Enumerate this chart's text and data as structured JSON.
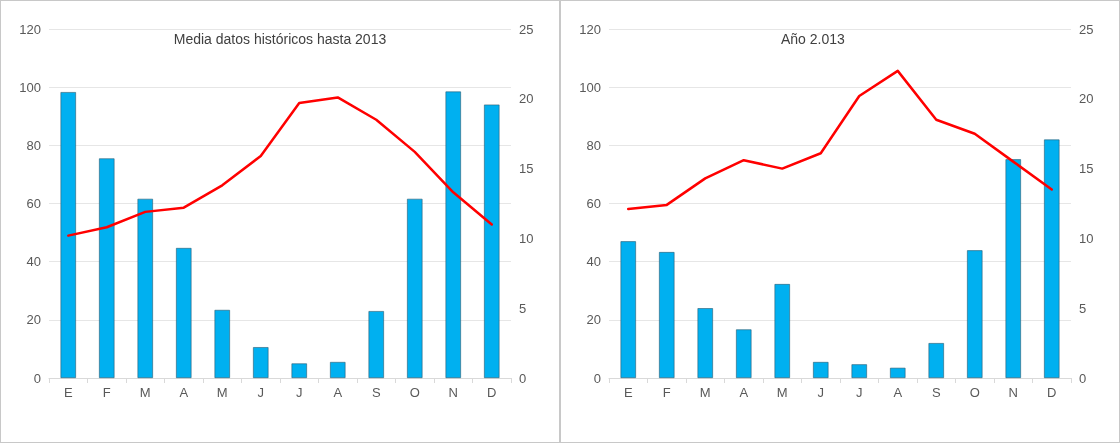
{
  "chart_data": [
    {
      "type": "bar",
      "title": "Media datos históricos hasta 2013",
      "categories": [
        "E",
        "F",
        "M",
        "A",
        "M",
        "J",
        "J",
        "A",
        "S",
        "O",
        "N",
        "D"
      ],
      "series": [
        {
          "color": "#00b0f0",
          "values": [
            98.3,
            75.5,
            61.6,
            44.7,
            23.4,
            10.6,
            5.0,
            5.5,
            23,
            61.6,
            98.5,
            94
          ]
        },
        {
          "type": "line",
          "axis": "y2",
          "color": "#ff0000",
          "values": [
            10.2,
            10.8,
            11.9,
            12.2,
            13.8,
            15.9,
            19.7,
            20.1,
            18.5,
            16.2,
            13.3,
            11.0
          ]
        }
      ],
      "ylim": [
        0,
        120
      ],
      "yticks": [
        0,
        20,
        40,
        60,
        80,
        100,
        120
      ],
      "y2lim": [
        0,
        25
      ],
      "y2ticks": [
        0,
        5,
        10,
        15,
        20,
        25
      ],
      "grid": "y",
      "marker": "none",
      "line_style": "solid"
    },
    {
      "type": "bar",
      "title": "Año 2.013",
      "categories": [
        "E",
        "F",
        "M",
        "A",
        "M",
        "J",
        "J",
        "A",
        "S",
        "O",
        "N",
        "D"
      ],
      "series": [
        {
          "color": "#00b0f0",
          "values": [
            47,
            43.3,
            24,
            16.7,
            32.3,
            5.5,
            4.7,
            3.5,
            12,
            43.9,
            75.2,
            82
          ]
        },
        {
          "type": "line",
          "axis": "y2",
          "color": "#ff0000",
          "values": [
            12.1,
            12.4,
            14.3,
            15.6,
            15.0,
            16.1,
            20.2,
            22.0,
            18.5,
            17.5,
            15.5,
            13.5
          ]
        }
      ],
      "ylim": [
        0,
        120
      ],
      "yticks": [
        0,
        20,
        40,
        60,
        80,
        100,
        120
      ],
      "y2lim": [
        0,
        25
      ],
      "y2ticks": [
        0,
        5,
        10,
        15,
        20,
        25
      ],
      "grid": "y",
      "marker": "none",
      "line_style": "solid"
    }
  ]
}
